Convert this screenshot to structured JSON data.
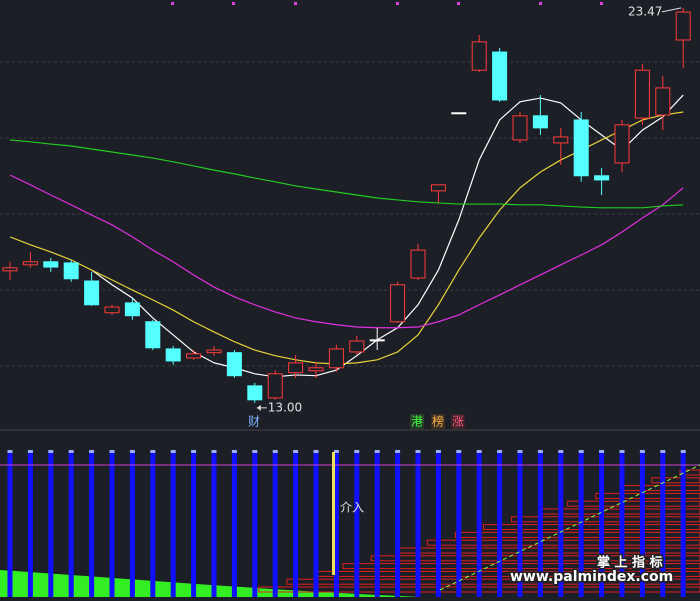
{
  "chart_data": {
    "type": "candlestick",
    "open": [
      16.5,
      16.66,
      16.74,
      16.71,
      16.23,
      15.39,
      15.65,
      15.15,
      14.43,
      14.19,
      14.33,
      14.33,
      13.45,
      13.13,
      13.8,
      13.85,
      13.93,
      14.35,
      14.67,
      15.15,
      16.31,
      18.62,
      20.69,
      21.82,
      22.3,
      19.97,
      20.61,
      19.89,
      20.5,
      19.02,
      19.36,
      20.55,
      20.63,
      22.62
    ],
    "high": [
      16.74,
      17.0,
      16.84,
      16.79,
      16.47,
      15.6,
      15.78,
      15.2,
      14.51,
      14.4,
      14.51,
      14.4,
      13.53,
      13.87,
      14.27,
      14.09,
      14.54,
      14.78,
      14.99,
      16.21,
      17.21,
      18.78,
      20.69,
      22.75,
      22.41,
      20.71,
      21.16,
      20.29,
      20.71,
      19.23,
      20.5,
      21.98,
      21.67,
      23.47
    ],
    "low": [
      16.26,
      16.58,
      16.47,
      16.21,
      15.57,
      15.33,
      15.2,
      14.4,
      14.01,
      14.14,
      14.25,
      13.66,
      13.0,
      13.08,
      13.66,
      13.66,
      13.82,
      14.27,
      14.4,
      15.12,
      16.26,
      18.3,
      20.69,
      21.77,
      20.98,
      19.89,
      20.1,
      19.31,
      18.86,
      18.51,
      19.12,
      20.37,
      20.23,
      21.88
    ],
    "close": [
      16.58,
      16.74,
      16.6,
      16.29,
      15.6,
      15.54,
      15.31,
      14.46,
      14.11,
      14.3,
      14.4,
      13.72,
      13.08,
      13.77,
      14.06,
      13.93,
      14.43,
      14.64,
      14.67,
      16.13,
      17.05,
      18.78,
      20.69,
      22.57,
      21.03,
      20.61,
      20.29,
      20.05,
      19.02,
      18.91,
      20.37,
      21.82,
      21.35,
      23.36
    ],
    "up_color": "#ff3b3b",
    "down_color": "#54ffff",
    "flat_color": "#ffffff",
    "series": [
      {
        "color": "#ffffff",
        "values": [
          null,
          null,
          null,
          null,
          16.52,
          16.13,
          15.78,
          15.25,
          14.8,
          14.35,
          14.06,
          13.93,
          13.77,
          13.69,
          13.74,
          13.72,
          13.87,
          14.25,
          14.67,
          14.99,
          15.6,
          16.52,
          17.85,
          19.44,
          20.5,
          20.98,
          21.08,
          20.95,
          20.5,
          20.1,
          19.7,
          20.23,
          20.58,
          21.16
        ]
      },
      {
        "color": "#e8d23a",
        "values": [
          17.4,
          17.19,
          17.0,
          16.79,
          16.52,
          16.26,
          15.99,
          15.73,
          15.46,
          15.15,
          14.88,
          14.62,
          14.4,
          14.25,
          14.14,
          14.06,
          14.03,
          14.06,
          14.14,
          14.35,
          14.8,
          15.6,
          16.52,
          17.37,
          18.11,
          18.7,
          19.12,
          19.44,
          19.7,
          19.97,
          20.23,
          20.5,
          20.63,
          20.71
        ]
      },
      {
        "color": "#e030e0",
        "values": [
          19.04,
          18.78,
          18.51,
          18.25,
          17.98,
          17.72,
          17.4,
          17.05,
          16.74,
          16.39,
          16.07,
          15.81,
          15.6,
          15.41,
          15.25,
          15.15,
          15.07,
          15.01,
          14.99,
          14.99,
          15.01,
          15.15,
          15.33,
          15.6,
          15.86,
          16.13,
          16.39,
          16.66,
          16.92,
          17.19,
          17.53,
          17.9,
          18.25,
          18.7
        ]
      },
      {
        "color": "#22cc22",
        "values": [
          19.97,
          19.92,
          19.86,
          19.81,
          19.73,
          19.65,
          19.57,
          19.49,
          19.39,
          19.28,
          19.17,
          19.07,
          18.96,
          18.86,
          18.75,
          18.67,
          18.59,
          18.51,
          18.43,
          18.38,
          18.33,
          18.3,
          18.27,
          18.27,
          18.27,
          18.25,
          18.25,
          18.22,
          18.19,
          18.17,
          18.17,
          18.17,
          18.22,
          18.25
        ]
      }
    ],
    "ylim": [
      12.28,
      23.68
    ],
    "high_label": 23.47,
    "low_label": {
      "value": 13,
      "label": "13.00"
    },
    "signal_labels": [
      "财",
      "港",
      "榜",
      "涨"
    ]
  },
  "indicator": {
    "label": "介入"
  },
  "watermark": {
    "title": "掌 上 指 标",
    "url": "www.palmindex.com"
  }
}
